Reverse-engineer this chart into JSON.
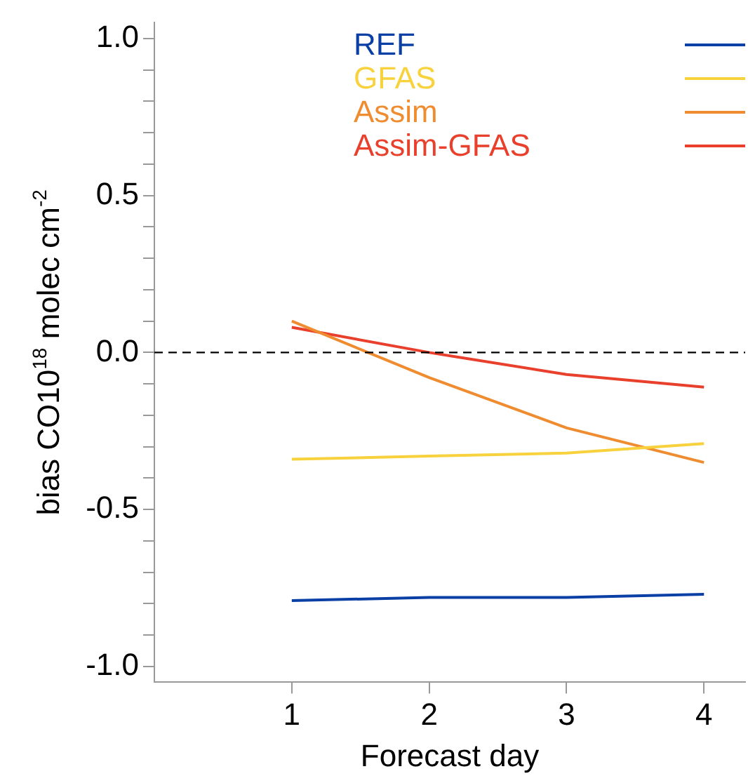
{
  "chart_data": {
    "type": "line",
    "xlabel": "Forecast day",
    "ylabel": "bias CO10$^{18}$ molec cm$^{-2}$",
    "x": [
      1,
      2,
      3,
      4
    ],
    "xlim": [
      0,
      4.3
    ],
    "xticks": [
      1,
      2,
      3,
      4
    ],
    "ylim": [
      -1.05,
      1.05
    ],
    "yticks": [
      {
        "value": -1,
        "label": "-1.0"
      },
      {
        "value": -0.9,
        "label": null
      },
      {
        "value": -0.8,
        "label": null
      },
      {
        "value": -0.7,
        "label": null
      },
      {
        "value": -0.6,
        "label": null
      },
      {
        "value": -0.5,
        "label": "-0.5"
      },
      {
        "value": -0.4,
        "label": null
      },
      {
        "value": -0.3,
        "label": null
      },
      {
        "value": -0.2,
        "label": null
      },
      {
        "value": -0.1,
        "label": null
      },
      {
        "value": 0,
        "label": "0.0"
      },
      {
        "value": 0.1,
        "label": null
      },
      {
        "value": 0.2,
        "label": null
      },
      {
        "value": 0.3,
        "label": null
      },
      {
        "value": 0.4,
        "label": null
      },
      {
        "value": 0.5,
        "label": "0.5"
      },
      {
        "value": 0.6,
        "label": null
      },
      {
        "value": 0.7,
        "label": null
      },
      {
        "value": 0.8,
        "label": null
      },
      {
        "value": 0.9,
        "label": null
      },
      {
        "value": 1,
        "label": "1.0"
      }
    ],
    "series": [
      {
        "name": "REF",
        "color": "#0a3fa6",
        "values": [
          -0.79,
          -0.78,
          -0.78,
          -0.77
        ]
      },
      {
        "name": "GFAS",
        "color": "#f7d23c",
        "values": [
          -0.34,
          -0.33,
          -0.32,
          -0.29
        ]
      },
      {
        "name": "Assim",
        "color": "#f08c30",
        "values": [
          0.1,
          -0.08,
          -0.24,
          -0.35
        ]
      },
      {
        "name": "Assim-GFAS",
        "color": "#e8402c",
        "values": [
          0.08,
          0.0,
          -0.07,
          -0.11
        ]
      }
    ],
    "ref_lines": [
      {
        "axis": "y",
        "value": 0,
        "label": null,
        "color": "#000000",
        "line_style": "dashed"
      }
    ],
    "legend": "top right",
    "grid": false,
    "marker": "none",
    "line_style": "solid"
  }
}
